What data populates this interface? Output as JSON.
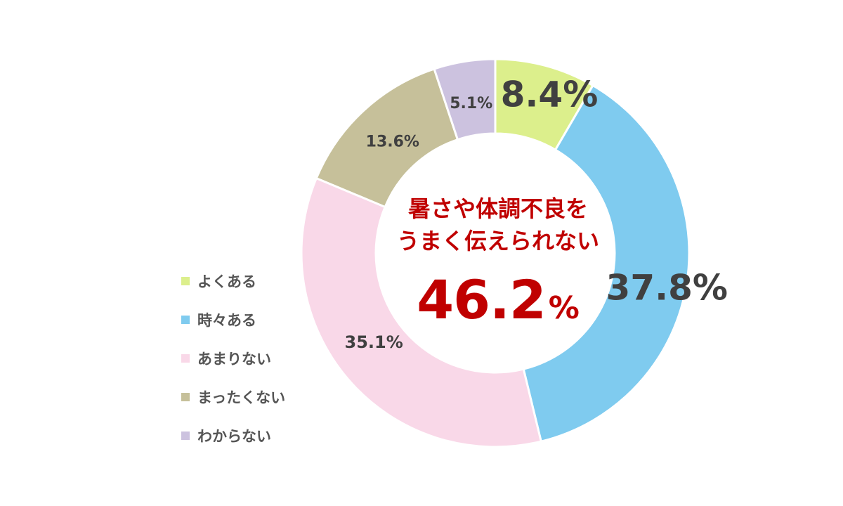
{
  "chart_data": {
    "type": "donut",
    "categories": [
      "よくある",
      "時々ある",
      "あまりない",
      "まったくない",
      "わからない"
    ],
    "values": [
      8.4,
      37.8,
      35.1,
      13.6,
      5.1
    ],
    "value_labels": [
      "8.4%",
      "37.8%",
      "35.1%",
      "13.6%",
      "5.1%"
    ],
    "colors": [
      "#dcef8c",
      "#7fcbef",
      "#f9d8e8",
      "#c6c09a",
      "#ccc2df"
    ],
    "center_title_line1": "暑さや体調不良を",
    "center_title_line2": "うまく伝えられない",
    "center_value": "46.2",
    "center_unit": "%",
    "legend_position": "left",
    "start_angle": "top",
    "direction": "clockwise"
  }
}
